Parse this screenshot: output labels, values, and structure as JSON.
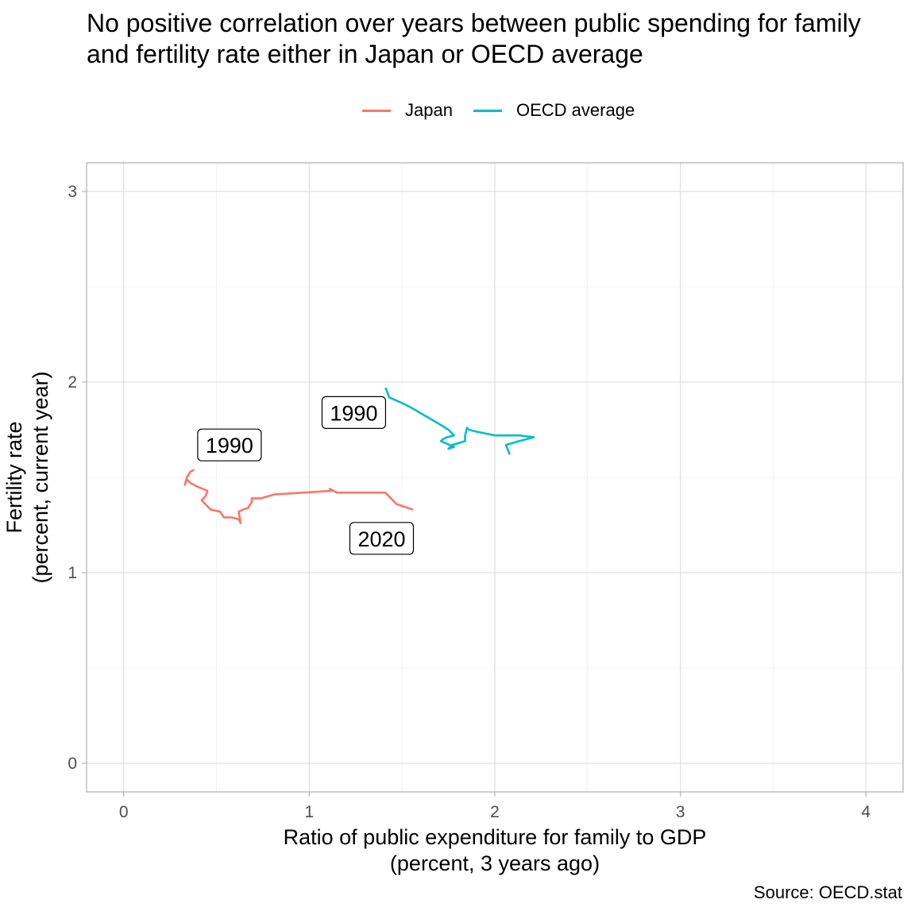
{
  "title_lines": [
    "No positive correlation over years between public spending for family",
    "and fertility rate either in Japan or OECD average"
  ],
  "caption": "Source: OECD.stat",
  "chart_data": {
    "type": "line",
    "title": "No positive correlation over years between public spending for family and fertility rate either in Japan or OECD average",
    "xlabel_lines": [
      "Ratio of public expenditure for family to GDP",
      "(percent, 3 years ago)"
    ],
    "ylabel_lines": [
      "Fertility rate",
      "(percent, current year)"
    ],
    "xlim": [
      -0.2,
      4.2
    ],
    "ylim": [
      -0.15,
      3.15
    ],
    "x_ticks": [
      0,
      1,
      2,
      3,
      4
    ],
    "y_ticks": [
      0,
      1,
      2,
      3
    ],
    "x_tick_labels": [
      "0",
      "1",
      "2",
      "3",
      "4"
    ],
    "y_tick_labels": [
      "0",
      "1",
      "2",
      "3"
    ],
    "grid": true,
    "legend_position": "top",
    "series": [
      {
        "name": "Japan",
        "color": "#F8766D",
        "x": [
          0.38,
          0.36,
          0.34,
          0.33,
          0.34,
          0.36,
          0.4,
          0.45,
          0.45,
          0.44,
          0.42,
          0.44,
          0.46,
          0.47,
          0.52,
          0.54,
          0.58,
          0.62,
          0.63,
          0.62,
          0.64,
          0.67,
          0.69,
          0.69,
          0.74,
          0.81,
          1.13,
          1.11,
          1.15,
          1.41,
          1.47,
          1.56
        ],
        "y": [
          1.54,
          1.53,
          1.5,
          1.46,
          1.49,
          1.47,
          1.45,
          1.43,
          1.42,
          1.4,
          1.38,
          1.36,
          1.34,
          1.33,
          1.32,
          1.29,
          1.29,
          1.28,
          1.26,
          1.32,
          1.33,
          1.34,
          1.37,
          1.39,
          1.39,
          1.41,
          1.43,
          1.44,
          1.42,
          1.42,
          1.36,
          1.33
        ]
      },
      {
        "name": "OECD average",
        "color": "#00BFC4",
        "x": [
          1.41,
          1.42,
          1.43,
          1.5,
          1.56,
          1.63,
          1.7,
          1.75,
          1.78,
          1.74,
          1.72,
          1.71,
          1.78,
          1.75,
          1.77,
          1.84,
          1.84,
          1.85,
          1.86,
          1.9,
          2.0,
          2.13,
          2.21,
          2.13,
          2.06,
          2.08
        ],
        "y": [
          1.97,
          1.95,
          1.92,
          1.89,
          1.86,
          1.82,
          1.78,
          1.75,
          1.72,
          1.71,
          1.7,
          1.69,
          1.66,
          1.65,
          1.67,
          1.69,
          1.72,
          1.76,
          1.75,
          1.74,
          1.72,
          1.72,
          1.71,
          1.69,
          1.67,
          1.62
        ]
      }
    ],
    "annotations": [
      {
        "label": "1990",
        "x": 0.57,
        "y": 1.67
      },
      {
        "label": "1990",
        "x": 1.24,
        "y": 1.84
      },
      {
        "label": "2020",
        "x": 1.39,
        "y": 1.18
      }
    ]
  }
}
